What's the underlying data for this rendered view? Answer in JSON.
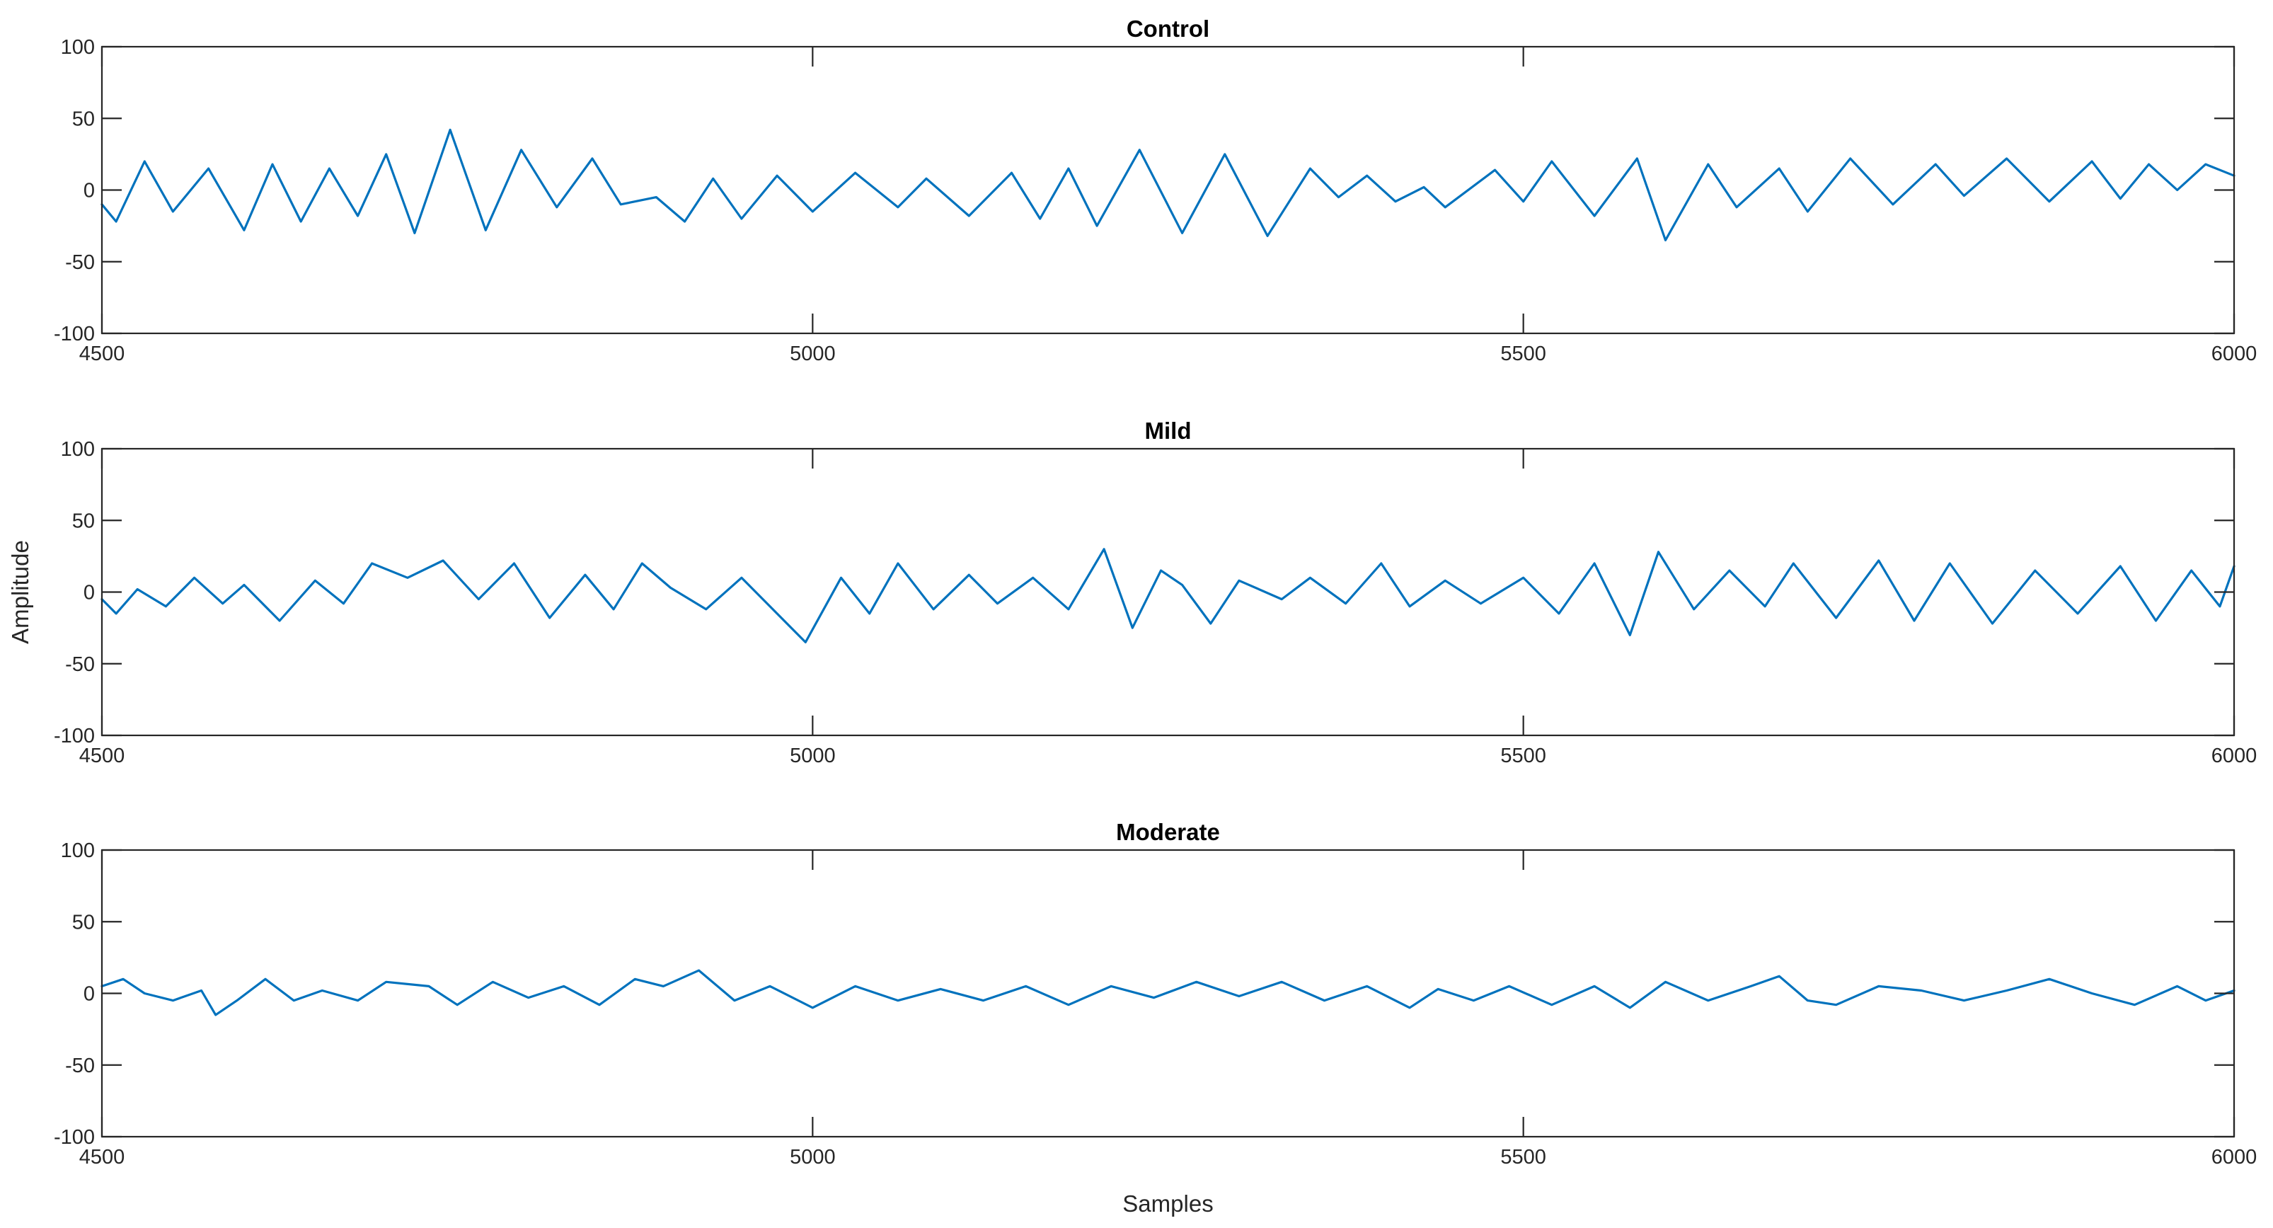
{
  "chart_data": [
    {
      "type": "line",
      "title": "Control",
      "xlim": [
        4500,
        6000
      ],
      "ylim": [
        -100,
        100
      ],
      "x_ticks": [
        4500,
        5000,
        5500,
        6000
      ],
      "y_ticks": [
        100,
        50,
        0,
        -50,
        -100
      ],
      "grid": false,
      "color": "#0072BD",
      "series": [
        {
          "x": [
            4500,
            4510,
            4530,
            4550,
            4575,
            4600,
            4620,
            4640,
            4660,
            4680,
            4700,
            4720,
            4745,
            4770,
            4795,
            4820,
            4845,
            4865,
            4890,
            4910,
            4930,
            4950,
            4975,
            5000,
            5030,
            5060,
            5080,
            5110,
            5140,
            5160,
            5180,
            5200,
            5230,
            5260,
            5290,
            5320,
            5350,
            5370,
            5390,
            5410,
            5430,
            5445,
            5480,
            5500,
            5520,
            5550,
            5580,
            5600,
            5630,
            5650,
            5680,
            5700,
            5730,
            5760,
            5790,
            5810,
            5840,
            5870,
            5900,
            5920,
            5940,
            5960,
            5980,
            6000
          ],
          "y": [
            -10,
            -22,
            20,
            -15,
            15,
            -28,
            18,
            -22,
            15,
            -18,
            25,
            -30,
            42,
            -28,
            28,
            -12,
            22,
            -10,
            -5,
            -22,
            8,
            -20,
            10,
            -15,
            12,
            -12,
            8,
            -18,
            12,
            -20,
            15,
            -25,
            28,
            -30,
            25,
            -32,
            15,
            -5,
            10,
            -8,
            2,
            -12,
            14,
            -8,
            20,
            -18,
            22,
            -35,
            18,
            -12,
            15,
            -15,
            22,
            -10,
            18,
            -4,
            22,
            -8,
            20,
            -6,
            18,
            0,
            18,
            10
          ]
        }
      ]
    },
    {
      "type": "line",
      "title": "Mild",
      "ylabel": "Amplitude",
      "xlim": [
        4500,
        6000
      ],
      "ylim": [
        -100,
        100
      ],
      "x_ticks": [
        4500,
        5000,
        5500,
        6000
      ],
      "y_ticks": [
        100,
        50,
        0,
        -50,
        -100
      ],
      "grid": false,
      "color": "#0072BD",
      "series": [
        {
          "x": [
            4500,
            4510,
            4525,
            4545,
            4565,
            4585,
            4600,
            4625,
            4650,
            4670,
            4690,
            4715,
            4740,
            4765,
            4790,
            4815,
            4840,
            4860,
            4880,
            4900,
            4925,
            4950,
            4975,
            4995,
            5020,
            5040,
            5060,
            5085,
            5110,
            5130,
            5155,
            5180,
            5205,
            5225,
            5245,
            5260,
            5280,
            5300,
            5330,
            5350,
            5375,
            5400,
            5420,
            5445,
            5470,
            5500,
            5525,
            5550,
            5575,
            5595,
            5620,
            5645,
            5670,
            5690,
            5720,
            5750,
            5775,
            5800,
            5830,
            5860,
            5890,
            5920,
            5945,
            5970,
            5990,
            6000
          ],
          "y": [
            -5,
            -15,
            2,
            -10,
            10,
            -8,
            5,
            -20,
            8,
            -8,
            20,
            10,
            22,
            -5,
            20,
            -18,
            12,
            -12,
            20,
            3,
            -12,
            10,
            -15,
            -35,
            10,
            -15,
            20,
            -12,
            12,
            -8,
            10,
            -12,
            30,
            -25,
            15,
            5,
            -22,
            8,
            -5,
            10,
            -8,
            20,
            -10,
            8,
            -8,
            10,
            -15,
            20,
            -30,
            28,
            -12,
            15,
            -10,
            20,
            -18,
            22,
            -20,
            20,
            -22,
            15,
            -15,
            18,
            -20,
            15,
            -10,
            18
          ]
        }
      ]
    },
    {
      "type": "line",
      "title": "Moderate",
      "xlim": [
        4500,
        6000
      ],
      "ylim": [
        -100,
        100
      ],
      "x_ticks": [
        4500,
        5000,
        5500,
        6000
      ],
      "y_ticks": [
        100,
        50,
        0,
        -50,
        -100
      ],
      "grid": false,
      "color": "#0072BD",
      "series": [
        {
          "x": [
            4500,
            4515,
            4530,
            4550,
            4570,
            4580,
            4595,
            4615,
            4635,
            4655,
            4680,
            4700,
            4730,
            4750,
            4775,
            4800,
            4825,
            4850,
            4875,
            4895,
            4920,
            4945,
            4970,
            5000,
            5030,
            5060,
            5090,
            5120,
            5150,
            5180,
            5210,
            5240,
            5270,
            5300,
            5330,
            5360,
            5390,
            5420,
            5440,
            5465,
            5490,
            5520,
            5550,
            5575,
            5600,
            5630,
            5660,
            5680,
            5700,
            5720,
            5750,
            5780,
            5810,
            5840,
            5870,
            5900,
            5930,
            5960,
            5980,
            6000
          ],
          "y": [
            5,
            10,
            0,
            -5,
            2,
            -15,
            -5,
            10,
            -5,
            2,
            -5,
            8,
            5,
            -8,
            8,
            -3,
            5,
            -8,
            10,
            5,
            16,
            -5,
            5,
            -10,
            5,
            -5,
            3,
            -5,
            5,
            -8,
            5,
            -3,
            8,
            -2,
            8,
            -5,
            5,
            -10,
            3,
            -5,
            5,
            -8,
            5,
            -10,
            8,
            -5,
            5,
            12,
            -5,
            -8,
            5,
            2,
            -5,
            2,
            10,
            0,
            -8,
            5,
            -5,
            2
          ]
        }
      ]
    }
  ],
  "figure": {
    "xlabel": "Samples",
    "ylabel": "Amplitude"
  }
}
